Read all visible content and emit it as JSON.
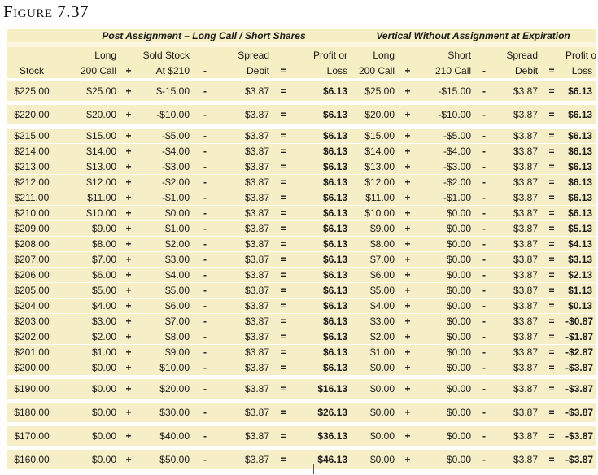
{
  "figure_title": "Figure 7.37",
  "groups": {
    "left": "Post Assignment – Long Call / Short Shares",
    "right": "Vertical Without Assignment at Expiration"
  },
  "headers": {
    "row1": [
      "",
      "Long",
      "",
      "Sold Stock",
      "",
      "Spread",
      "",
      "Profit or",
      "Long",
      "",
      "Short",
      "",
      "Spread",
      "",
      "Profit or"
    ],
    "row2": [
      "Stock",
      "200 Call",
      "+",
      "At $210",
      "-",
      "Debit",
      "=",
      "Loss",
      "200 Call",
      "+",
      "210 Call",
      "-",
      "Debit",
      "=",
      "Loss"
    ]
  },
  "rows": [
    [
      "$225.00",
      "$25.00",
      "$-15.00",
      "$3.87",
      "$6.13",
      "$25.00",
      "-$15.00",
      "$3.87",
      "$6.13"
    ],
    [
      "$220.00",
      "$20.00",
      "-$10.00",
      "$3.87",
      "$6.13",
      "$20.00",
      "-$10.00",
      "$3.87",
      "$6.13"
    ],
    [
      "$215.00",
      "$15.00",
      "-$5.00",
      "$3.87",
      "$6.13",
      "$15.00",
      "-$5.00",
      "$3.87",
      "$6.13"
    ],
    [
      "$214.00",
      "$14.00",
      "-$4.00",
      "$3.87",
      "$6.13",
      "$14.00",
      "-$4.00",
      "$3.87",
      "$6.13"
    ],
    [
      "$213.00",
      "$13.00",
      "-$3.00",
      "$3.87",
      "$6.13",
      "$13.00",
      "-$3.00",
      "$3.87",
      "$6.13"
    ],
    [
      "$212.00",
      "$12.00",
      "-$2.00",
      "$3.87",
      "$6.13",
      "$12.00",
      "-$2.00",
      "$3.87",
      "$6.13"
    ],
    [
      "$211.00",
      "$11.00",
      "-$1.00",
      "$3.87",
      "$6.13",
      "$11.00",
      "-$1.00",
      "$3.87",
      "$6.13"
    ],
    [
      "$210.00",
      "$10.00",
      "$0.00",
      "$3.87",
      "$6.13",
      "$10.00",
      "$0.00",
      "$3.87",
      "$6.13"
    ],
    [
      "$209.00",
      "$9.00",
      "$1.00",
      "$3.87",
      "$6.13",
      "$9.00",
      "$0.00",
      "$3.87",
      "$5.13"
    ],
    [
      "$208.00",
      "$8.00",
      "$2.00",
      "$3.87",
      "$6.13",
      "$8.00",
      "$0.00",
      "$3.87",
      "$4.13"
    ],
    [
      "$207.00",
      "$7.00",
      "$3.00",
      "$3.87",
      "$6.13",
      "$7.00",
      "$0.00",
      "$3.87",
      "$3.13"
    ],
    [
      "$206.00",
      "$6.00",
      "$4.00",
      "$3.87",
      "$6.13",
      "$6.00",
      "$0.00",
      "$3.87",
      "$2.13"
    ],
    [
      "$205.00",
      "$5.00",
      "$5.00",
      "$3.87",
      "$6.13",
      "$5.00",
      "$0.00",
      "$3.87",
      "$1.13"
    ],
    [
      "$204.00",
      "$4.00",
      "$6.00",
      "$3.87",
      "$6.13",
      "$4.00",
      "$0.00",
      "$3.87",
      "$0.13"
    ],
    [
      "$203.00",
      "$3.00",
      "$7.00",
      "$3.87",
      "$6.13",
      "$3.00",
      "$0.00",
      "$3.87",
      "-$0.87"
    ],
    [
      "$202.00",
      "$2.00",
      "$8.00",
      "$3.87",
      "$6.13",
      "$2.00",
      "$0.00",
      "$3.87",
      "-$1.87"
    ],
    [
      "$201.00",
      "$1.00",
      "$9.00",
      "$3.87",
      "$6.13",
      "$1.00",
      "$0.00",
      "$3.87",
      "-$2.87"
    ],
    [
      "$200.00",
      "$0.00",
      "$10.00",
      "$3.87",
      "$6.13",
      "$0.00",
      "$0.00",
      "$3.87",
      "-$3.87"
    ],
    [
      "$190.00",
      "$0.00",
      "$20.00",
      "$3.87",
      "$16.13",
      "$0.00",
      "$0.00",
      "$3.87",
      "-$3.87"
    ],
    [
      "$180.00",
      "$0.00",
      "$30.00",
      "$3.87",
      "$26.13",
      "$0.00",
      "$0.00",
      "$3.87",
      "-$3.87"
    ],
    [
      "$170.00",
      "$0.00",
      "$40.00",
      "$3.87",
      "$36.13",
      "$0.00",
      "$0.00",
      "$3.87",
      "-$3.87"
    ],
    [
      "$160.00",
      "$0.00",
      "$50.00",
      "$3.87",
      "$46.13",
      "$0.00",
      "$0.00",
      "$3.87",
      "-$3.87"
    ]
  ],
  "row_layout": {
    "wide": [
      0,
      1,
      18,
      19,
      20,
      21
    ],
    "separator_after": [
      0,
      1,
      17,
      18,
      19,
      20
    ]
  },
  "operators": [
    "+",
    "-",
    "="
  ],
  "colors": {
    "band": "#f7efc4",
    "band_light": "#fbf6dd"
  }
}
